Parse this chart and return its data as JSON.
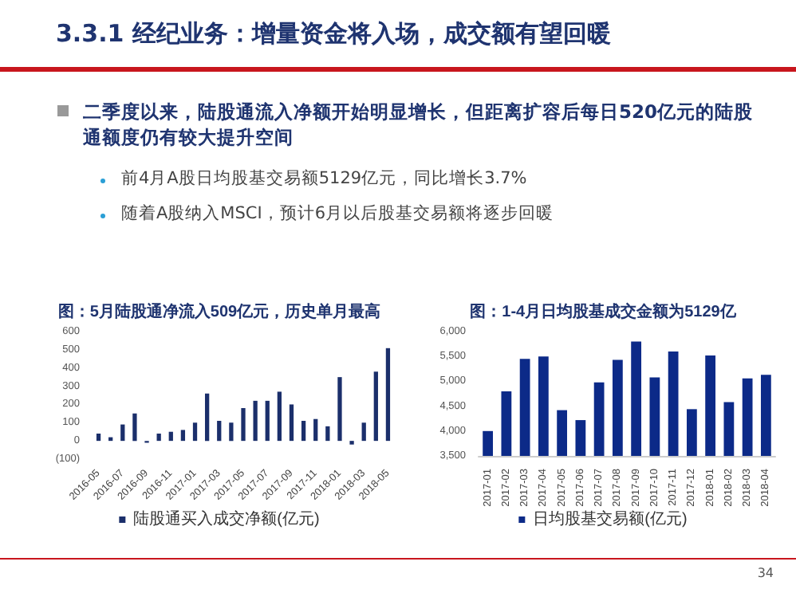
{
  "chart_data": [
    {
      "type": "other",
      "title": "3.3.1 经纪业务：增量资金将入场，成交额有望回暖",
      "annotations": [
        "二季度以来，陆股通流入净额开始明显增长，但距离扩容后每日520亿元的陆股通额度仍有较大提升空间",
        "前4月A股日均股基交易额5129亿元，同比增长3.7%",
        "随着A股纳入MSCI，预计6月以后股基交易额将逐步回暖",
        "34"
      ]
    },
    {
      "type": "bar",
      "title": "图：5月陆股通净流入509亿元，历史单月最高",
      "categories": [
        "2016-05",
        null,
        "2016-07",
        null,
        "2016-09",
        null,
        "2016-11",
        null,
        "2017-01",
        null,
        "2017-03",
        null,
        "2017-05",
        null,
        "2017-07",
        null,
        "2017-09",
        null,
        "2017-11",
        null,
        "2018-01",
        null,
        "2018-03",
        null,
        "2018-05"
      ],
      "series": [
        {
          "name": "陆股通买入成交净额(亿元)",
          "color": "#1b2f6b",
          "values": [
            40,
            20,
            90,
            150,
            -10,
            40,
            50,
            60,
            100,
            260,
            110,
            100,
            180,
            220,
            220,
            270,
            200,
            110,
            120,
            80,
            350,
            -20,
            100,
            380,
            509
          ]
        }
      ],
      "ylim": [
        -100,
        600
      ],
      "yticks": [
        {
          "value": -100,
          "label": "(100)"
        },
        0,
        100,
        200,
        300,
        400,
        500,
        600
      ],
      "grid": false,
      "legend": "bottom"
    },
    {
      "type": "bar",
      "title": "图：1-4月日均股基成交金额为5129亿",
      "categories": [
        "2017-01",
        "2017-02",
        "2017-03",
        "2017-04",
        "2017-05",
        "2017-06",
        "2017-07",
        "2017-08",
        "2017-09",
        "2017-10",
        "2017-11",
        "2017-12",
        "2018-01",
        "2018-02",
        "2018-03",
        "2018-04"
      ],
      "series": [
        {
          "name": "日均股基交易额(亿元)",
          "color": "#0c2a88",
          "values": [
            4000,
            4800,
            5450,
            5500,
            4420,
            4220,
            4980,
            5430,
            5800,
            5080,
            5600,
            4440,
            5520,
            4580,
            5060,
            5129
          ]
        }
      ],
      "ylim": [
        3500,
        6000
      ],
      "yticks": [
        {
          "value": 3500,
          "label": "3,500"
        },
        {
          "value": 4000,
          "label": "4,000"
        },
        {
          "value": 4500,
          "label": "4,500"
        },
        {
          "value": 5000,
          "label": "5,000"
        },
        {
          "value": 5500,
          "label": "5,500"
        },
        {
          "value": 6000,
          "label": "6,000"
        }
      ],
      "grid": false,
      "legend": "bottom"
    }
  ]
}
